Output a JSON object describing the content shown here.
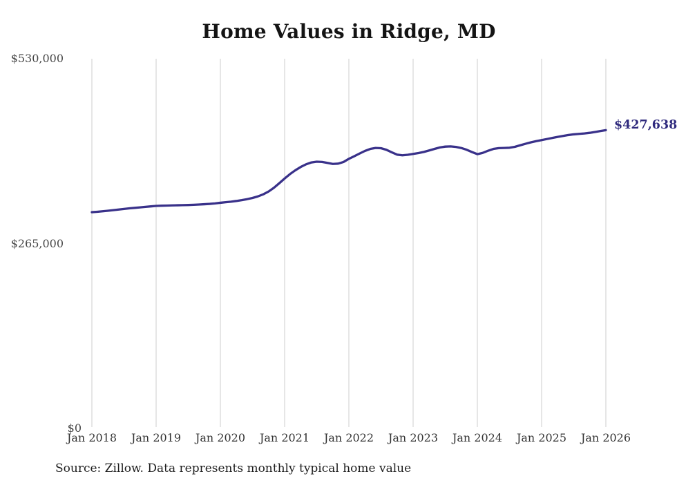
{
  "chart_data": {
    "type": "line",
    "title": "Home Values in Ridge, MD",
    "source_note": "Source: Zillow. Data represents monthly typical home value",
    "end_label": "$427,638",
    "final_value": 427638,
    "x_start": "2018-01",
    "x_end": "2026-01",
    "x_interval": "monthly",
    "x_tick_labels": [
      "Jan 2018",
      "Jan 2019",
      "Jan 2020",
      "Jan 2021",
      "Jan 2022",
      "Jan 2023",
      "Jan 2024",
      "Jan 2025",
      "Jan 2026"
    ],
    "y_ticks": [
      {
        "label": "$0",
        "value": 0
      },
      {
        "label": "$265,000",
        "value": 265000
      },
      {
        "label": "$530,000",
        "value": 530000
      }
    ],
    "ylim": [
      0,
      530000
    ],
    "grid": "vertical-only",
    "legend": "none",
    "colors": {
      "line": "#39318a",
      "end_label": "#2f2a7d",
      "grid": "#cccccc"
    },
    "series": [
      {
        "name": "Typical home value",
        "monthly_values": [
          310000,
          310600,
          311300,
          312100,
          312900,
          313800,
          314700,
          315500,
          316200,
          316900,
          317600,
          318300,
          319000,
          319300,
          319500,
          319700,
          319900,
          320100,
          320300,
          320600,
          321000,
          321400,
          321900,
          322600,
          323500,
          324300,
          325100,
          326100,
          327300,
          328700,
          330400,
          332600,
          335600,
          339600,
          345000,
          351500,
          358200,
          364600,
          370100,
          374800,
          378600,
          381300,
          382400,
          382000,
          380600,
          379200,
          379600,
          382000,
          386500,
          390200,
          394100,
          397800,
          400700,
          402100,
          401700,
          399500,
          395900,
          392500,
          391600,
          392300,
          393600,
          394800,
          396400,
          398500,
          400700,
          402800,
          404000,
          404300,
          403600,
          402000,
          399500,
          396200,
          393200,
          395000,
          398100,
          400700,
          401800,
          402100,
          402400,
          403700,
          405900,
          408100,
          410100,
          411900,
          413400,
          414900,
          416400,
          417900,
          419300,
          420600,
          421600,
          422300,
          422900,
          423800,
          425000,
          426300,
          427638
        ]
      }
    ]
  }
}
